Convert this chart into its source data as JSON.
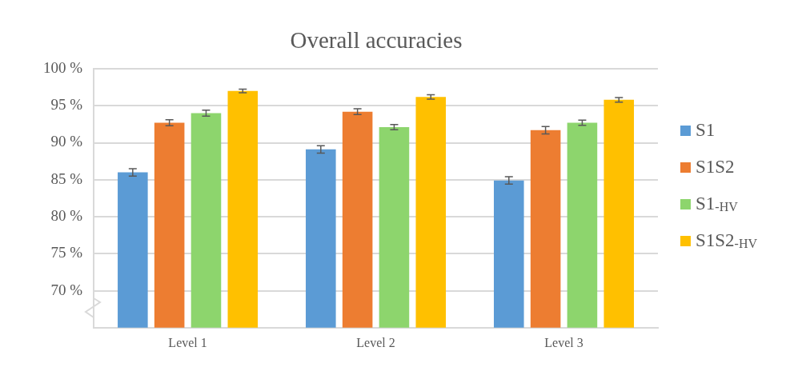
{
  "chart_data": {
    "type": "bar",
    "title": "Overall accuracies",
    "categories": [
      "Level 1",
      "Level 2",
      "Level 3"
    ],
    "series": [
      {
        "name": "S1",
        "color": "#5b9bd5",
        "values": [
          86.0,
          89.1,
          84.9
        ],
        "errors": [
          0.5,
          0.5,
          0.5
        ]
      },
      {
        "name": "S1S2",
        "color": "#ed7d31",
        "values": [
          92.7,
          94.2,
          91.7
        ],
        "errors": [
          0.4,
          0.4,
          0.5
        ]
      },
      {
        "name": "S1$_{-HV}$",
        "color": "#8dd56d",
        "values": [
          94.0,
          92.1,
          92.7
        ],
        "errors": [
          0.4,
          0.35,
          0.35
        ]
      },
      {
        "name": "S1S2$_{-HV}$",
        "color": "#ffc000",
        "values": [
          97.0,
          96.2,
          95.8
        ],
        "errors": [
          0.25,
          0.3,
          0.3
        ]
      }
    ],
    "ylim": [
      65,
      100
    ],
    "yticks": [
      {
        "value": 70,
        "label": "70 %"
      },
      {
        "value": 75,
        "label": "75 %"
      },
      {
        "value": 80,
        "label": "80 %"
      },
      {
        "value": 85,
        "label": "85 %"
      },
      {
        "value": 90,
        "label": "90 %"
      },
      {
        "value": 95,
        "label": "95 %"
      },
      {
        "value": 100,
        "label": "100 %"
      }
    ],
    "grid": "y",
    "legend": "right"
  }
}
